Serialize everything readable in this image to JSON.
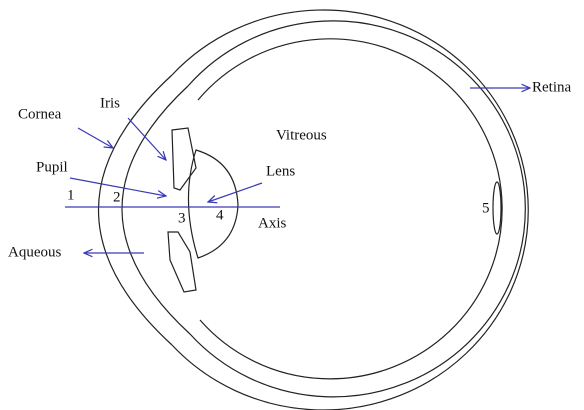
{
  "labels": {
    "cornea": "Cornea",
    "iris": "Iris",
    "vitreous": "Vitreous",
    "retina": "Retina",
    "pupil": "Pupil",
    "lens": "Lens",
    "axis": "Axis",
    "aqueous": "Aqueous"
  },
  "numbers": [
    "1",
    "2",
    "3",
    "4",
    "5"
  ]
}
